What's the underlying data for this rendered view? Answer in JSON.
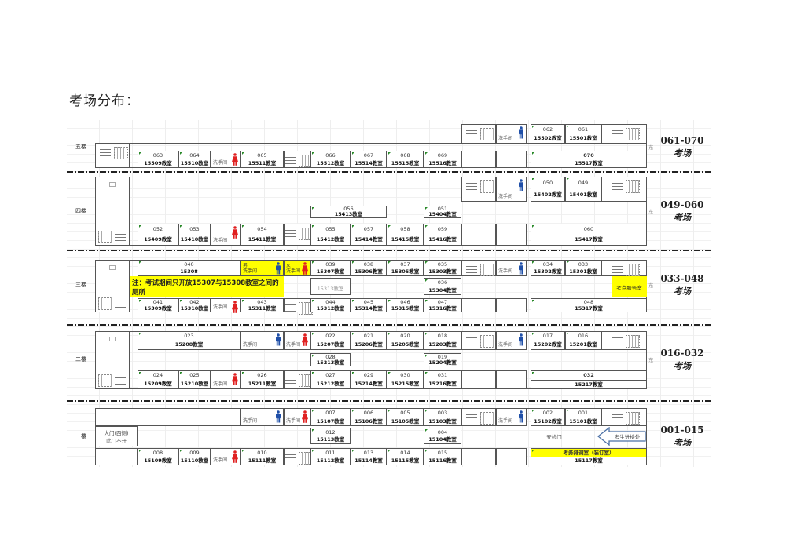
{
  "title": "考场分布：",
  "floors": [
    {
      "label": "五楼",
      "east": "东",
      "range": "061-070",
      "unit": "考场",
      "left": [
        {
          "t": "stairs"
        }
      ],
      "top": [
        {
          "t": "stairs"
        },
        {
          "t": "wc",
          "label": "洗手间",
          "gender": "male"
        },
        {
          "t": "room",
          "code": "062",
          "name": "15502教室"
        },
        {
          "t": "room",
          "code": "061",
          "name": "15501教室"
        },
        {
          "t": "stairs"
        }
      ],
      "middle": [],
      "bottom": [
        {
          "t": "room",
          "code": "063",
          "name": "15509教室"
        },
        {
          "t": "room",
          "code": "064",
          "name": "15510教室"
        },
        {
          "t": "wc",
          "label": "洗手间",
          "gender": "female"
        },
        {
          "t": "room",
          "code": "065",
          "name": "15511教室"
        },
        {
          "t": "stairs"
        },
        {
          "t": "room",
          "code": "066",
          "name": "15512教室"
        },
        {
          "t": "room",
          "code": "067",
          "name": "15514教室"
        },
        {
          "t": "room",
          "code": "068",
          "name": "15515教室"
        },
        {
          "t": "room",
          "code": "069",
          "name": "15516教室"
        },
        {
          "t": "empty"
        },
        {
          "t": "empty"
        },
        {
          "t": "room",
          "code": "070",
          "name": "15517教室",
          "bold": true
        }
      ]
    },
    {
      "label": "四楼",
      "east": "东",
      "range": "049-060",
      "unit": "考场",
      "left": [
        {
          "t": "stairs"
        }
      ],
      "top": [
        {
          "t": "stairs"
        },
        {
          "t": "wc",
          "label": "洗手间",
          "gender": "male"
        },
        {
          "t": "room",
          "code": "050",
          "name": "15402教室"
        },
        {
          "t": "room",
          "code": "049",
          "name": "15401教室"
        },
        {
          "t": "stairs"
        }
      ],
      "middle": [
        {
          "t": "room",
          "code": "056",
          "name": "15413教室"
        },
        {
          "t": "room",
          "code": "051",
          "name": "15404教室"
        }
      ],
      "bottom": [
        {
          "t": "room",
          "code": "052",
          "name": "15409教室"
        },
        {
          "t": "room",
          "code": "053",
          "name": "15410教室"
        },
        {
          "t": "wc",
          "label": "洗手间",
          "gender": "female"
        },
        {
          "t": "room",
          "code": "054",
          "name": "15411教室"
        },
        {
          "t": "stairs"
        },
        {
          "t": "room",
          "code": "055",
          "name": "15412教室"
        },
        {
          "t": "room",
          "code": "057",
          "name": "15414教室"
        },
        {
          "t": "room",
          "code": "058",
          "name": "15415教室"
        },
        {
          "t": "room",
          "code": "059",
          "name": "15416教室"
        },
        {
          "t": "empty"
        },
        {
          "t": "empty"
        },
        {
          "t": "room",
          "code": "060",
          "name": "15417教室"
        }
      ]
    },
    {
      "label": "三楼",
      "east": "东",
      "range": "033-048",
      "unit": "考场",
      "left": [
        {
          "t": "stairs"
        }
      ],
      "top": [
        {
          "t": "room",
          "code": "040",
          "name": "15308"
        },
        {
          "t": "wc",
          "label": "洗手间",
          "gender": "male",
          "tag": "男",
          "yellow": true
        },
        {
          "t": "wc",
          "label": "洗手间",
          "gender": "female",
          "tag": "女",
          "yellow": true
        },
        {
          "t": "room",
          "code": "039",
          "name": "15307教室"
        },
        {
          "t": "room",
          "code": "038",
          "name": "15306教室"
        },
        {
          "t": "room",
          "code": "037",
          "name": "15305教室"
        },
        {
          "t": "room",
          "code": "035",
          "name": "15303教室"
        },
        {
          "t": "stairs"
        },
        {
          "t": "wc",
          "label": "洗手间",
          "gender": "male"
        },
        {
          "t": "room",
          "code": "034",
          "name": "15302教室"
        },
        {
          "t": "room",
          "code": "033",
          "name": "15301教室"
        },
        {
          "t": "stairs"
        }
      ],
      "middle": [
        {
          "t": "note",
          "text": "注：考试期间只开放15307与15308教室之间的厕所"
        },
        {
          "t": "room",
          "code": "",
          "name": "15313教室",
          "grey": true
        },
        {
          "t": "room",
          "code": "036",
          "name": "15304教室"
        },
        {
          "t": "service",
          "text": "考点服务室"
        }
      ],
      "bottom": [
        {
          "t": "room",
          "code": "041",
          "name": "15309教室"
        },
        {
          "t": "room",
          "code": "042",
          "name": "15310教室"
        },
        {
          "t": "wc",
          "label": "洗手间",
          "gender": "female"
        },
        {
          "t": "room",
          "code": "043",
          "name": "15311教室"
        },
        {
          "t": "stairs"
        },
        {
          "t": "room",
          "code": "044",
          "name": "15312教室"
        },
        {
          "t": "room",
          "code": "045",
          "name": "15314教室"
        },
        {
          "t": "room",
          "code": "046",
          "name": "15315教室"
        },
        {
          "t": "room",
          "code": "047",
          "name": "15316教室"
        },
        {
          "t": "empty"
        },
        {
          "t": "empty"
        },
        {
          "t": "room",
          "code": "048",
          "name": "15317教室"
        }
      ]
    },
    {
      "label": "二楼",
      "east": "东",
      "range": "016-032",
      "unit": "考场",
      "left": [
        {
          "t": "stairs"
        }
      ],
      "top": [
        {
          "t": "room",
          "code": "023",
          "name": "15208教室"
        },
        {
          "t": "wc",
          "label": "洗手间",
          "gender": "male"
        },
        {
          "t": "wc",
          "label": "洗手间",
          "gender": "female"
        },
        {
          "t": "room",
          "code": "022",
          "name": "15207教室"
        },
        {
          "t": "room",
          "code": "021",
          "name": "15206教室"
        },
        {
          "t": "room",
          "code": "020",
          "name": "15205教室"
        },
        {
          "t": "room",
          "code": "018",
          "name": "15203教室"
        },
        {
          "t": "stairs"
        },
        {
          "t": "wc",
          "label": "洗手间",
          "gender": "male"
        },
        {
          "t": "room",
          "code": "017",
          "name": "15202教室"
        },
        {
          "t": "room",
          "code": "016",
          "name": "15201教室"
        },
        {
          "t": "stairs"
        }
      ],
      "middle": [
        {
          "t": "room",
          "code": "028",
          "name": "15213教室"
        },
        {
          "t": "room",
          "code": "019",
          "name": "15204教室"
        }
      ],
      "bottom": [
        {
          "t": "room",
          "code": "024",
          "name": "15209教室"
        },
        {
          "t": "room",
          "code": "025",
          "name": "15210教室"
        },
        {
          "t": "wc",
          "label": "洗手间",
          "gender": "female"
        },
        {
          "t": "room",
          "code": "026",
          "name": "15211教室"
        },
        {
          "t": "stairs"
        },
        {
          "t": "room",
          "code": "027",
          "name": "15212教室"
        },
        {
          "t": "room",
          "code": "029",
          "name": "15214教室"
        },
        {
          "t": "room",
          "code": "030",
          "name": "15215教室"
        },
        {
          "t": "room",
          "code": "031",
          "name": "15216教室"
        },
        {
          "t": "empty"
        },
        {
          "t": "empty"
        },
        {
          "t": "split",
          "code": "032",
          "name": "15217教室"
        }
      ]
    },
    {
      "label": "一楼",
      "east": "",
      "range": "001-015",
      "unit": "考场",
      "left": [
        {
          "t": "empty"
        }
      ],
      "top": [
        {
          "t": "empty"
        },
        {
          "t": "wc",
          "label": "洗手间",
          "gender": "male"
        },
        {
          "t": "wc",
          "label": "洗手间",
          "gender": "female"
        },
        {
          "t": "room",
          "code": "007",
          "name": "15107教室"
        },
        {
          "t": "room",
          "code": "006",
          "name": "15106教室"
        },
        {
          "t": "room",
          "code": "005",
          "name": "15105教室"
        },
        {
          "t": "room",
          "code": "003",
          "name": "15103教室"
        },
        {
          "t": "stairs"
        },
        {
          "t": "wc",
          "label": "洗手间",
          "gender": "male"
        },
        {
          "t": "room",
          "code": "002",
          "name": "15102教室"
        },
        {
          "t": "room",
          "code": "001",
          "name": "15101教室"
        },
        {
          "t": "stairs"
        }
      ],
      "middle": [
        {
          "t": "gate",
          "text": "大门(西侧)\n此门不开"
        },
        {
          "t": "room",
          "code": "012",
          "name": "15113教室"
        },
        {
          "t": "room",
          "code": "004",
          "name": "15104教室"
        },
        {
          "t": "plain",
          "text": "安检门"
        },
        {
          "t": "arrow",
          "text": "考生进楼处"
        }
      ],
      "bottom": [
        {
          "t": "room",
          "code": "008",
          "name": "15109教室"
        },
        {
          "t": "room",
          "code": "009",
          "name": "15110教室"
        },
        {
          "t": "wc",
          "label": "洗手间",
          "gender": "female"
        },
        {
          "t": "room",
          "code": "010",
          "name": "15111教室"
        },
        {
          "t": "stairs"
        },
        {
          "t": "room",
          "code": "011",
          "name": "15112教室"
        },
        {
          "t": "room",
          "code": "013",
          "name": "15114教室"
        },
        {
          "t": "room",
          "code": "014",
          "name": "15115教室"
        },
        {
          "t": "room",
          "code": "015",
          "name": "15116教室"
        },
        {
          "t": "empty"
        },
        {
          "t": "empty"
        },
        {
          "t": "split",
          "code": "考务排调室（装订室）",
          "name": "15117教室",
          "yellow": true
        }
      ]
    }
  ],
  "colors": {
    "highlight": "#ffff00",
    "male": "#1f4fa8",
    "female": "#e02020"
  }
}
